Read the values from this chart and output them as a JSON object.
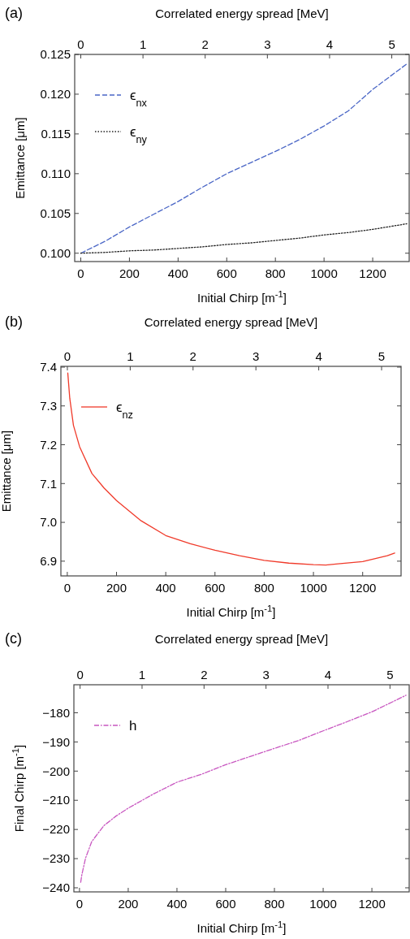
{
  "chart_data": [
    {
      "type": "line",
      "title": "(a)",
      "x2label": "Correlated energy spread [MeV]",
      "xlabel": "Initial Chirp [m$^{-1}$]",
      "ylabel": "Emittance [μm]",
      "xlim": [
        -25,
        1350
      ],
      "xticks": [
        0,
        200,
        400,
        600,
        800,
        1000,
        1200
      ],
      "x2lim": [
        -0.098,
        5.28
      ],
      "x2ticks": [
        0,
        1,
        2,
        3,
        4,
        5
      ],
      "ylim": [
        0.09895,
        0.125
      ],
      "yticks": [
        {
          "value": 0.1,
          "label": "0.100"
        },
        {
          "value": 0.105,
          "label": "0.105"
        },
        {
          "value": 0.11,
          "label": "0.110"
        },
        {
          "value": 0.115,
          "label": "0.115"
        },
        {
          "value": 0.12,
          "label": "0.120"
        },
        {
          "value": 0.125,
          "label": "0.125"
        }
      ],
      "legend": "top left",
      "grid": false,
      "x": [
        0,
        100,
        200,
        300,
        400,
        500,
        600,
        700,
        800,
        900,
        1000,
        1100,
        1200,
        1340
      ],
      "series": [
        {
          "name": "ϵ$_{nx}$",
          "color": "#4a66c6",
          "line_style": "dashed",
          "values": [
            0.1,
            0.1015,
            0.1033,
            0.1049,
            0.1065,
            0.1083,
            0.11,
            0.1114,
            0.1128,
            0.1143,
            0.116,
            0.1179,
            0.1206,
            0.1238
          ]
        },
        {
          "name": "ϵ$_{ny}$",
          "color": "#222222",
          "line_style": "dotted",
          "values": [
            0.1,
            0.1001,
            0.1003,
            0.1004,
            0.1006,
            0.1008,
            0.1011,
            0.1013,
            0.1016,
            0.1019,
            0.1023,
            0.1026,
            0.103,
            0.1037
          ]
        }
      ]
    },
    {
      "type": "line",
      "title": "(b)",
      "x2label": "Correlated energy spread [MeV]",
      "xlabel": "Initial Chirp [m$^{-1}$]",
      "ylabel": "Emittance [μm]",
      "xlim": [
        -26,
        1356
      ],
      "xticks": [
        0,
        200,
        400,
        600,
        800,
        1000,
        1200
      ],
      "x2lim": [
        -0.103,
        5.31
      ],
      "x2ticks": [
        0,
        1,
        2,
        3,
        4,
        5
      ],
      "ylim": [
        6.862,
        7.402
      ],
      "yticks": [
        {
          "value": 6.9,
          "label": "6.9"
        },
        {
          "value": 7,
          "label": "7.0"
        },
        {
          "value": 7.1,
          "label": "7.1"
        },
        {
          "value": 7.2,
          "label": "7.2"
        },
        {
          "value": 7.3,
          "label": "7.3"
        },
        {
          "value": 7.4,
          "label": "7.4"
        }
      ],
      "legend": "top left",
      "grid": false,
      "x": [
        2,
        10,
        25,
        50,
        100,
        150,
        200,
        300,
        400,
        500,
        600,
        700,
        800,
        900,
        1000,
        1050,
        1100,
        1200,
        1300,
        1330
      ],
      "series": [
        {
          "name": "ϵ$_{nz}$",
          "color": "#f03a2a",
          "line_style": "solid",
          "values": [
            7.385,
            7.32,
            7.25,
            7.195,
            7.126,
            7.088,
            7.056,
            7.004,
            6.966,
            6.945,
            6.928,
            6.914,
            6.902,
            6.895,
            6.891,
            6.89,
            6.893,
            6.899,
            6.914,
            6.921
          ]
        }
      ]
    },
    {
      "type": "line",
      "title": "(c)",
      "x2label": "Correlated energy spread [MeV]",
      "xlabel": "Initial Chirp [m$^{-1}$]",
      "ylabel": "Final Chirp [m$^{-1}$]",
      "xlim": [
        -23,
        1353
      ],
      "xticks": [
        0,
        200,
        400,
        600,
        800,
        1000,
        1200
      ],
      "x2lim": [
        -0.1,
        5.31
      ],
      "x2ticks": [
        0,
        1,
        2,
        3,
        4,
        5
      ],
      "ylim": [
        -241.4,
        -170.4
      ],
      "yticks": [
        -240,
        -230,
        -220,
        -210,
        -200,
        -190,
        -180
      ],
      "legend": "top left",
      "grid": false,
      "x": [
        5,
        10,
        25,
        50,
        100,
        150,
        200,
        300,
        400,
        500,
        600,
        700,
        800,
        900,
        1000,
        1100,
        1200,
        1340
      ],
      "series": [
        {
          "name": "h",
          "color": "#c857c0",
          "line_style": "dashdot",
          "values": [
            -238.1,
            -235.4,
            -229.8,
            -224.2,
            -218.7,
            -215.4,
            -212.7,
            -208.0,
            -203.8,
            -201.1,
            -197.8,
            -195.0,
            -192.2,
            -189.5,
            -186.2,
            -183.0,
            -179.7,
            -174.0
          ]
        }
      ]
    }
  ]
}
